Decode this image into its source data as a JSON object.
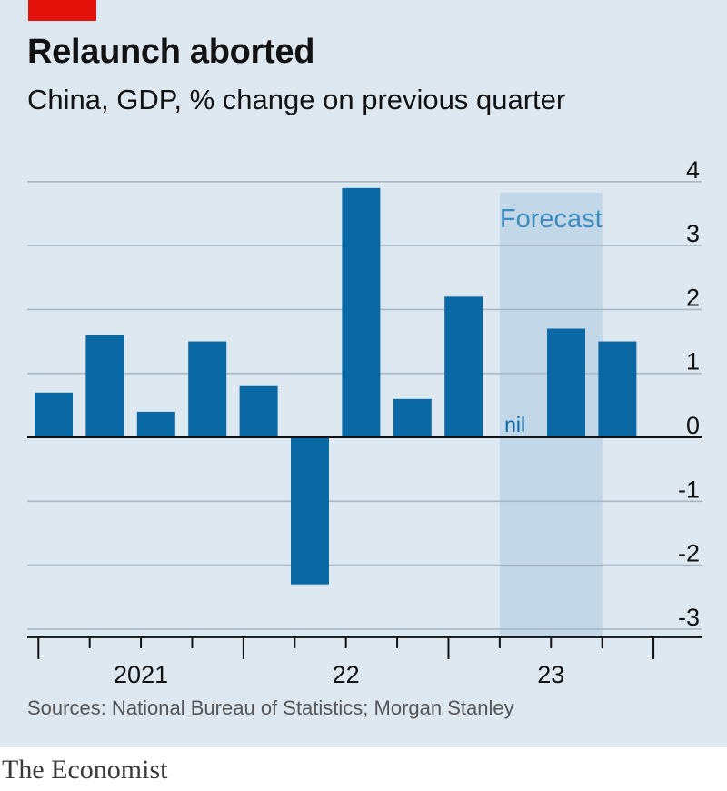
{
  "header": {
    "title": "Relaunch aborted",
    "subtitle": "China, GDP, % change on previous quarter"
  },
  "footer": {
    "source": "Sources: National Bureau of Statistics; Morgan Stanley",
    "brand": "The Economist"
  },
  "colors": {
    "bar": "#0a69a5",
    "forecast_band": "#c2d8e8",
    "forecast_text": "#3d8bbf",
    "accent_red": "#e3120b",
    "background": "#dde8f0"
  },
  "chart_data": {
    "type": "bar",
    "categories": [
      "2021 Q1",
      "2021 Q2",
      "2021 Q3",
      "2021 Q4",
      "2022 Q1",
      "2022 Q2",
      "2022 Q3",
      "2022 Q4",
      "2023 Q1",
      "2023 Q2",
      "2023 Q3",
      "2023 Q4"
    ],
    "values": [
      0.7,
      1.6,
      0.4,
      1.5,
      0.8,
      -2.3,
      3.9,
      0.6,
      2.2,
      0,
      1.7,
      1.5
    ],
    "ylim": [
      -3,
      4
    ],
    "yticks": [
      "4",
      "3",
      "2",
      "1",
      "0",
      "-1",
      "-2",
      "-3"
    ],
    "year_labels": [
      "2021",
      "22",
      "23"
    ],
    "forecast_label": "Forecast",
    "forecast_categories": [
      "2023 Q2",
      "2023 Q3"
    ],
    "zero_value_label": "nil",
    "grid": true
  }
}
